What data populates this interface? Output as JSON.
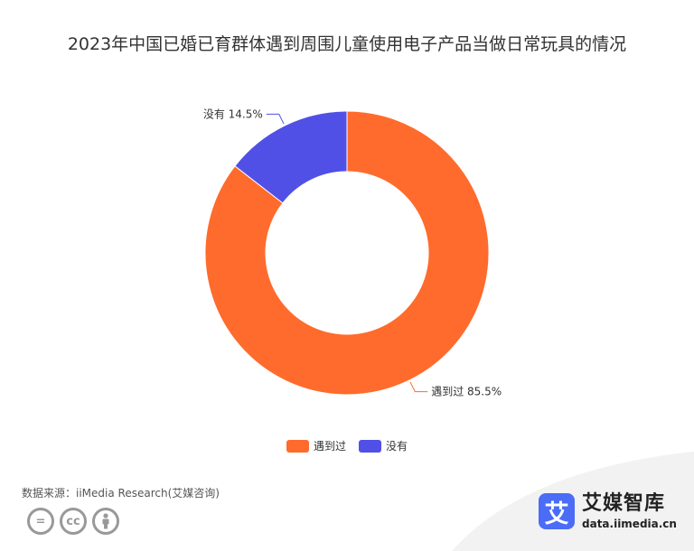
{
  "title": "2023年中国已婚已育群体遇到周围儿童使用电子产品当做日常玩具的情况",
  "chart_data": {
    "type": "pie",
    "donut": true,
    "title": "2023年中国已婚已育群体遇到周围儿童使用电子产品当做日常玩具的情况",
    "categories": [
      "遇到过",
      "没有"
    ],
    "values": [
      85.5,
      14.5
    ],
    "unit": "%",
    "colors": [
      "#ff6b2c",
      "#5150e6"
    ],
    "labels": [
      "遇到过 85.5%",
      "没有 14.5%"
    ],
    "legend": [
      "遇到过",
      "没有"
    ],
    "legend_position": "bottom-center"
  },
  "source": "数据来源：iiMedia Research(艾媒咨询)",
  "cc_icons": [
    "equals-icon",
    "cc-icon",
    "person-icon"
  ],
  "brand": {
    "logo_char": "艾",
    "name": "艾媒智库",
    "url": "data.iimedia.cn"
  }
}
